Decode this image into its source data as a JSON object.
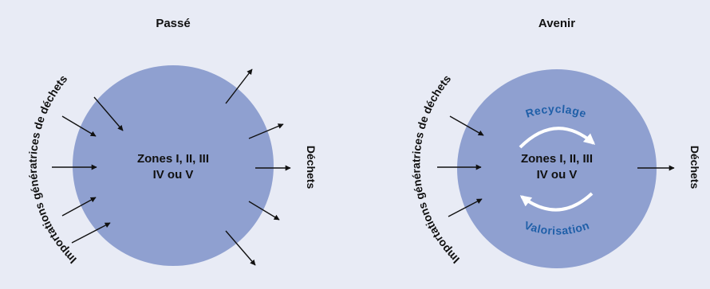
{
  "colors": {
    "background": "#e8ebf5",
    "circle": "#8fa0d0",
    "arrow": "#111111",
    "accent_text": "#1f5fa8",
    "cycle_arrow": "#ffffff"
  },
  "past": {
    "title": "Passé",
    "zone_line1": "Zones I, II, III",
    "zone_line2": "IV ou V",
    "imports_label": "Importations génératrices de déchets",
    "waste_label": "Déchets"
  },
  "future": {
    "title": "Avenir",
    "zone_line1": "Zones I, II, III",
    "zone_line2": "IV ou V",
    "imports_label": "Importations génératrices de déchets",
    "waste_label": "Déchets",
    "recycle_label": "Recyclage",
    "valorisation_label": "Valorisation"
  }
}
